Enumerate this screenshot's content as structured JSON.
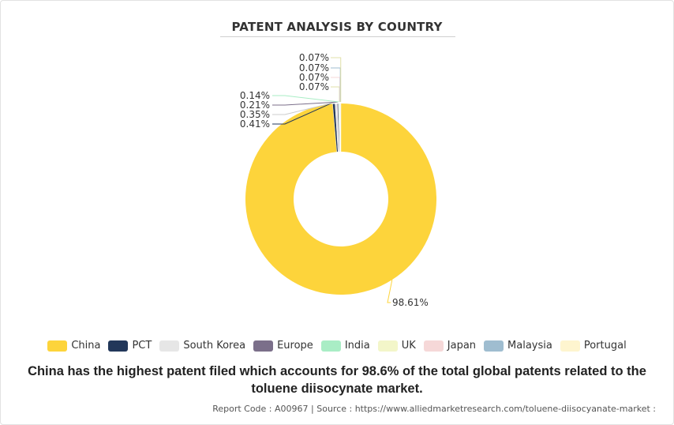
{
  "chart_data": {
    "type": "pie",
    "title": "PATENT ANALYSIS BY COUNTRY",
    "categories": [
      "China",
      "PCT",
      "South Korea",
      "Europe",
      "India",
      "UK",
      "Japan",
      "Malaysia",
      "Portugal"
    ],
    "values": [
      98.61,
      0.41,
      0.35,
      0.21,
      0.14,
      0.07,
      0.07,
      0.07,
      0.07
    ],
    "data_labels": [
      "98.61%",
      "0.41%",
      "0.35%",
      "0.21%",
      "0.14%",
      "0.07%",
      "0.07%",
      "0.07%",
      "0.07%"
    ],
    "colors": [
      "#fdd43b",
      "#22375a",
      "#e6e6e6",
      "#7b6f8a",
      "#a9edc5",
      "#f3f6c9",
      "#f6d8d8",
      "#9fbdd0",
      "#fef5cf"
    ],
    "donut": true,
    "legend_position": "bottom"
  },
  "caption": "China has the highest patent filed which accounts for 98.6% of the total global patents related to the toluene diisocynate market.",
  "footer": {
    "text": "Report Code : A00967  |  Source : https://www.alliedmarketresearch.com/toluene-diisocyanate-market :"
  }
}
